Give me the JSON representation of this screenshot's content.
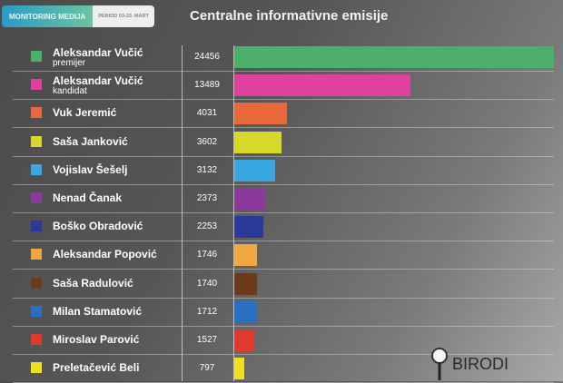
{
  "header": {
    "badge": "MONITORING MEDIJA",
    "period": "PERIOD 03-23. MART"
  },
  "logo_text": "BIRODI",
  "chart_data": {
    "type": "bar",
    "orientation": "horizontal",
    "title": "Centralne informativne emisije",
    "categories": [
      "Aleksandar Vučić",
      "Aleksandar Vučić",
      "Vuk Jeremić",
      "Saša Janković",
      "Vojislav Šešelj",
      "Nenad Čanak",
      "Boško Obradović",
      "Aleksandar Popović",
      "Saša Radulović",
      "Milan Stamatović",
      "Miroslav Parović",
      "Preletačević Beli"
    ],
    "subtitles": [
      "premijer",
      "kandidat",
      "",
      "",
      "",
      "",
      "",
      "",
      "",
      "",
      "",
      ""
    ],
    "values": [
      24456,
      13489,
      4031,
      3602,
      3132,
      2373,
      2253,
      1746,
      1740,
      1712,
      1527,
      797
    ],
    "colors": [
      "#4caf6a",
      "#e040a0",
      "#e8683a",
      "#d8d82a",
      "#3aa8e0",
      "#8a3a9a",
      "#2a3a9a",
      "#f0a840",
      "#6a3a1a",
      "#2a70c0",
      "#e03a30",
      "#f0e020"
    ],
    "xlim": [
      0,
      24456
    ]
  }
}
